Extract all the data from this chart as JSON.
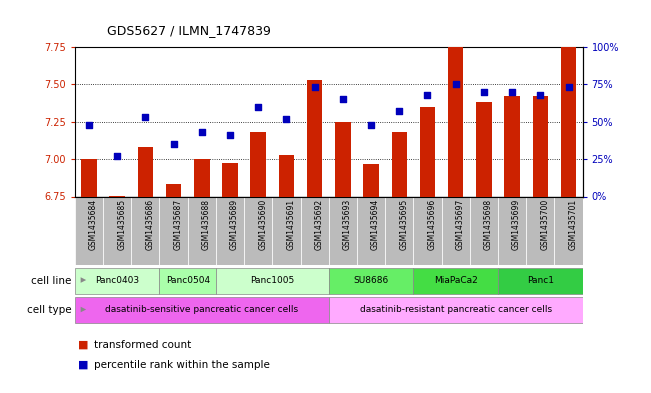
{
  "title": "GDS5627 / ILMN_1747839",
  "samples": [
    "GSM1435684",
    "GSM1435685",
    "GSM1435686",
    "GSM1435687",
    "GSM1435688",
    "GSM1435689",
    "GSM1435690",
    "GSM1435691",
    "GSM1435692",
    "GSM1435693",
    "GSM1435694",
    "GSM1435695",
    "GSM1435696",
    "GSM1435697",
    "GSM1435698",
    "GSM1435699",
    "GSM1435700",
    "GSM1435701"
  ],
  "bar_values": [
    7.0,
    6.755,
    7.08,
    6.835,
    7.0,
    6.975,
    7.18,
    7.03,
    7.53,
    7.25,
    6.97,
    7.185,
    7.35,
    7.82,
    7.38,
    7.42,
    7.42,
    7.88
  ],
  "dot_values": [
    48,
    27,
    53,
    35,
    43,
    41,
    60,
    52,
    73,
    65,
    48,
    57,
    68,
    75,
    70,
    70,
    68,
    73
  ],
  "ylim_left": [
    6.75,
    7.75
  ],
  "ylim_right": [
    0,
    100
  ],
  "yticks_left": [
    6.75,
    7.0,
    7.25,
    7.5,
    7.75
  ],
  "yticks_right": [
    0,
    25,
    50,
    75,
    100
  ],
  "ytick_labels_right": [
    "0%",
    "25%",
    "50%",
    "75%",
    "100%"
  ],
  "grid_values": [
    7.0,
    7.25,
    7.5
  ],
  "bar_color": "#cc2200",
  "dot_color": "#0000bb",
  "bar_bottom": 6.75,
  "bg_color": "#ffffff",
  "sample_band_color": "#cccccc",
  "legend_items": [
    {
      "label": "transformed count",
      "color": "#cc2200"
    },
    {
      "label": "percentile rank within the sample",
      "color": "#0000bb"
    }
  ],
  "cell_line_groups": [
    {
      "label": "Panc0403",
      "start": 0,
      "end": 2,
      "color": "#ccffcc"
    },
    {
      "label": "Panc0504",
      "start": 3,
      "end": 4,
      "color": "#aaffaa"
    },
    {
      "label": "Panc1005",
      "start": 5,
      "end": 8,
      "color": "#ccffcc"
    },
    {
      "label": "SU8686",
      "start": 9,
      "end": 11,
      "color": "#66ee66"
    },
    {
      "label": "MiaPaCa2",
      "start": 12,
      "end": 14,
      "color": "#44dd44"
    },
    {
      "label": "Panc1",
      "start": 15,
      "end": 17,
      "color": "#33cc44"
    }
  ],
  "cell_type_groups": [
    {
      "label": "dasatinib-sensitive pancreatic cancer cells",
      "start": 0,
      "end": 8,
      "color": "#ee66ee"
    },
    {
      "label": "dasatinib-resistant pancreatic cancer cells",
      "start": 9,
      "end": 17,
      "color": "#ffaaff"
    }
  ],
  "cell_line_label": "cell line",
  "cell_type_label": "cell type"
}
